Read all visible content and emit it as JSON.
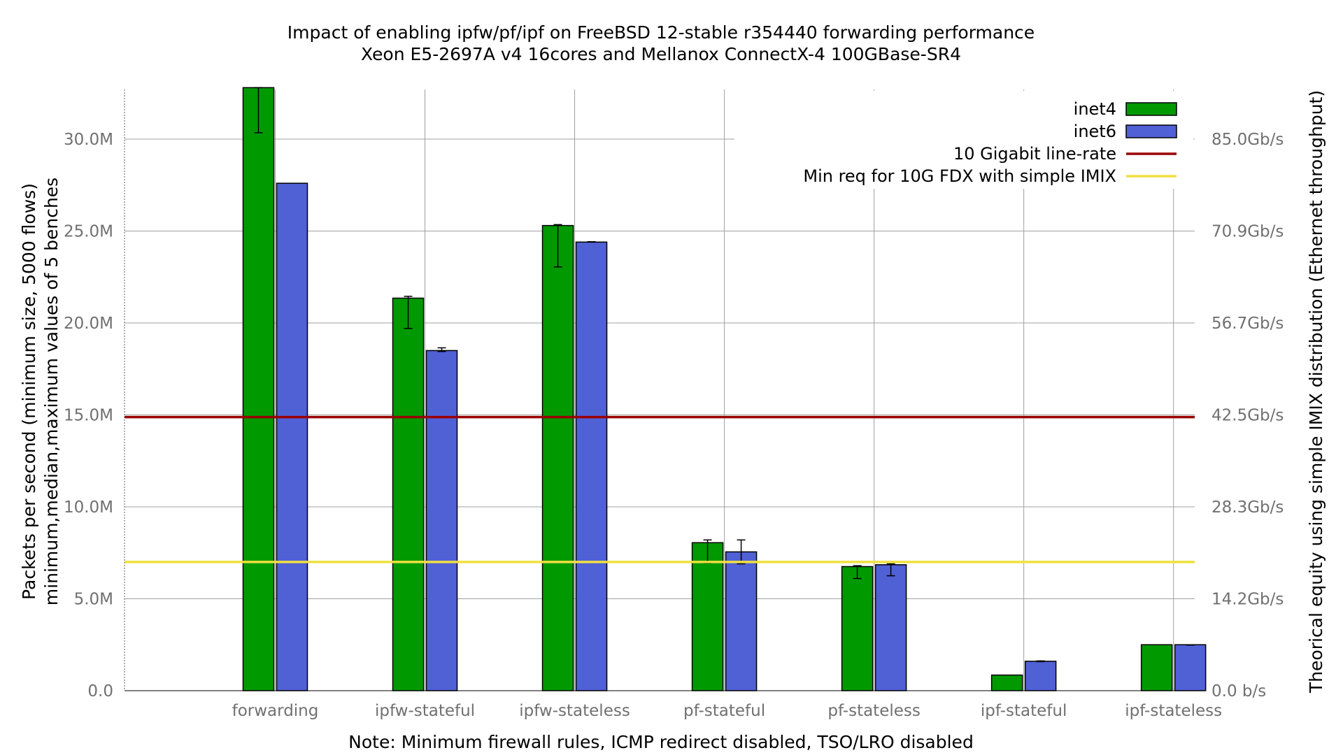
{
  "chart_data": {
    "type": "bar",
    "title": "Impact of enabling ipfw/pf/ipf on FreeBSD 12-stable r354440 forwarding performance",
    "subtitle": "Xeon E5-2697A v4 16cores and Mellanox ConnectX-4 100GBase-SR4",
    "xlabel": "Note: Minimum firewall rules, ICMP redirect disabled, TSO/LRO disabled",
    "ylabel": "Packets per second (minimum size, 5000 flows)",
    "ylabel2": "minimum,median,maximum values of 5 benches",
    "y2label": "Theorical equity using simple IMIX distribution (Ethernet throughput)",
    "ylim": [
      0,
      32700000
    ],
    "yticks": [
      {
        "value": 0,
        "label": "0.0"
      },
      {
        "value": 5000000,
        "label": "5.0M"
      },
      {
        "value": 10000000,
        "label": "10.0M"
      },
      {
        "value": 15000000,
        "label": "15.0M"
      },
      {
        "value": 20000000,
        "label": "20.0M"
      },
      {
        "value": 25000000,
        "label": "25.0M"
      },
      {
        "value": 30000000,
        "label": "30.0M"
      }
    ],
    "y2ticks": [
      {
        "value": 0,
        "label": "0.0 b/s"
      },
      {
        "value": 5000000,
        "label": "14.2Gb/s"
      },
      {
        "value": 10000000,
        "label": "28.3Gb/s"
      },
      {
        "value": 15000000,
        "label": "42.5Gb/s"
      },
      {
        "value": 20000000,
        "label": "56.7Gb/s"
      },
      {
        "value": 25000000,
        "label": "70.9Gb/s"
      },
      {
        "value": 30000000,
        "label": "85.0Gb/s"
      }
    ],
    "categories": [
      "forwarding",
      "ipfw-stateful",
      "ipfw-stateless",
      "pf-stateful",
      "pf-stateless",
      "ipf-stateful",
      "ipf-stateless"
    ],
    "series": [
      {
        "name": "inet4",
        "color": "#009900",
        "values": [
          32800000,
          21350000,
          25300000,
          8050000,
          6750000,
          850000,
          2500000
        ],
        "min": [
          30350000,
          19700000,
          23050000,
          6950000,
          6100000,
          850000,
          2500000
        ],
        "max": [
          32800000,
          21450000,
          25350000,
          8200000,
          6800000,
          850000,
          2500000
        ]
      },
      {
        "name": "inet6",
        "color": "#5060d5",
        "values": [
          27600000,
          18500000,
          24400000,
          7550000,
          6850000,
          1600000,
          2500000
        ],
        "min": [
          27600000,
          18450000,
          24400000,
          6900000,
          6250000,
          1580000,
          2480000
        ],
        "max": [
          27600000,
          18650000,
          24420000,
          8200000,
          6900000,
          1620000,
          2500000
        ]
      }
    ],
    "reference_lines": [
      {
        "name": "10 Gigabit line-rate",
        "value": 14880000,
        "color": "#990000"
      },
      {
        "name": "Min req for 10G FDX with simple IMIX",
        "value": 7000000,
        "color": "#f0e040"
      }
    ],
    "grid": true,
    "legend": "top-right"
  }
}
